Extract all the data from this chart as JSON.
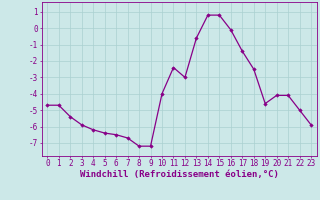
{
  "x": [
    0,
    1,
    2,
    3,
    4,
    5,
    6,
    7,
    8,
    9,
    10,
    11,
    12,
    13,
    14,
    15,
    16,
    17,
    18,
    19,
    20,
    21,
    22,
    23
  ],
  "y": [
    -4.7,
    -4.7,
    -5.4,
    -5.9,
    -6.2,
    -6.4,
    -6.5,
    -6.7,
    -7.2,
    -7.2,
    -4.0,
    -2.4,
    -3.0,
    -0.6,
    0.8,
    0.8,
    -0.1,
    -1.4,
    -2.5,
    -4.6,
    -4.1,
    -4.1,
    -5.0,
    -5.9
  ],
  "line_color": "#880088",
  "marker": "D",
  "markersize": 1.8,
  "linewidth": 0.9,
  "bg_color": "#cce8e8",
  "grid_color": "#aad0d0",
  "xlabel": "Windchill (Refroidissement éolien,°C)",
  "xlabel_color": "#880088",
  "xlabel_fontsize": 6.5,
  "tick_color": "#880088",
  "tick_fontsize": 5.5,
  "ytick_vals": [
    1,
    0,
    -1,
    -2,
    -3,
    -4,
    -5,
    -6,
    -7
  ],
  "ytick_labels": [
    "1",
    "0",
    "-1",
    "-2",
    "-3",
    "-4",
    "-5",
    "-6",
    "-7"
  ],
  "ylim": [
    -7.8,
    1.6
  ],
  "xlim": [
    -0.5,
    23.5
  ]
}
